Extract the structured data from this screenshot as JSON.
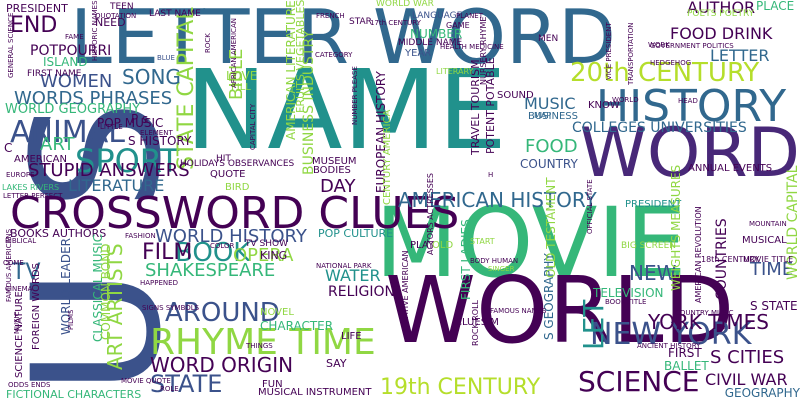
{
  "palette": {
    "background": "#ffffff",
    "dark_purple": "#440154",
    "indigo": "#3b528b",
    "teal_blue": "#31688e",
    "teal": "#21918c",
    "green": "#35b779",
    "lime": "#90d743",
    "yellow": "#b5de2b"
  },
  "words": [
    {
      "text": "NAME",
      "color": "#21918c",
      "orientation": "horizontal"
    },
    {
      "text": "MOVIE",
      "color": "#35b779",
      "orientation": "horizontal"
    },
    {
      "text": "U S",
      "color": "#3b528b",
      "orientation": "vertical"
    },
    {
      "text": "WORLD",
      "color": "#440154",
      "orientation": "horizontal"
    },
    {
      "text": "LETTER WORD",
      "color": "#31688e",
      "orientation": "horizontal"
    },
    {
      "text": "WORD",
      "color": "#482878",
      "orientation": "horizontal"
    },
    {
      "text": "CROSSWORD CLUES",
      "color": "#440154",
      "orientation": "horizontal"
    },
    {
      "text": "HISTORY",
      "color": "#31688e",
      "orientation": "horizontal"
    },
    {
      "text": "20th CENTURY",
      "color": "#b5de2b",
      "orientation": "horizontal"
    },
    {
      "text": "RHYME TIME",
      "color": "#90d743",
      "orientation": "horizontal"
    },
    {
      "text": "SCIENCE",
      "color": "#440154",
      "orientation": "horizontal"
    },
    {
      "text": "NEW YORK",
      "color": "#3b528b",
      "orientation": "horizontal"
    },
    {
      "text": "AMERICAN HISTORY",
      "color": "#31688e",
      "orientation": "horizontal"
    },
    {
      "text": "SPORT",
      "color": "#21918c",
      "orientation": "horizontal"
    },
    {
      "text": "ANIMAL",
      "color": "#3b528b",
      "orientation": "horizontal"
    },
    {
      "text": "STATE CAPITAL",
      "color": "#90d743",
      "orientation": "vertical"
    },
    {
      "text": "BIBLE",
      "color": "#90d743",
      "orientation": "vertical"
    },
    {
      "text": "WORLD HISTORY",
      "color": "#3b528b",
      "orientation": "horizontal"
    },
    {
      "text": "BOOK",
      "color": "#21918c",
      "orientation": "horizontal"
    },
    {
      "text": "SHAKESPEARE",
      "color": "#35b779",
      "orientation": "horizontal"
    },
    {
      "text": "AROUND",
      "color": "#3b528b",
      "orientation": "horizontal"
    },
    {
      "text": "WORD ORIGIN",
      "color": "#440154",
      "orientation": "horizontal"
    },
    {
      "text": "STATE",
      "color": "#3b528b",
      "orientation": "horizontal"
    },
    {
      "text": "19th CENTURY",
      "color": "#b5de2b",
      "orientation": "horizontal"
    },
    {
      "text": "LET",
      "color": "#21918c",
      "orientation": "vertical"
    },
    {
      "text": "YORK TIMES",
      "color": "#440154",
      "orientation": "horizontal"
    },
    {
      "text": "S CITIES",
      "color": "#440154",
      "orientation": "horizontal"
    },
    {
      "text": "CIVIL WAR",
      "color": "#440154",
      "orientation": "horizontal"
    },
    {
      "text": "GEOGRAPHY",
      "color": "#31688e",
      "orientation": "horizontal"
    },
    {
      "text": "FOOD DRINK",
      "color": "#440154",
      "orientation": "horizontal"
    },
    {
      "text": "AUTHOR",
      "color": "#440154",
      "orientation": "horizontal"
    },
    {
      "text": "PLACE",
      "color": "#35b779",
      "orientation": "horizontal"
    },
    {
      "text": "LETTER",
      "color": "#31688e",
      "orientation": "horizontal"
    },
    {
      "text": "COLLEGES UNIVERSITIES",
      "color": "#31688e",
      "orientation": "horizontal"
    },
    {
      "text": "END",
      "color": "#440154",
      "orientation": "horizontal"
    },
    {
      "text": "WOMEN",
      "color": "#3b528b",
      "orientation": "horizontal"
    },
    {
      "text": "WORDS PHRASES",
      "color": "#31688e",
      "orientation": "horizontal"
    },
    {
      "text": "SONG",
      "color": "#31688e",
      "orientation": "horizontal"
    },
    {
      "text": "ART",
      "color": "#35b779",
      "orientation": "horizontal"
    },
    {
      "text": "STUPID ANSWERS",
      "color": "#440154",
      "orientation": "horizontal"
    },
    {
      "text": "LITERATURE",
      "color": "#31688e",
      "orientation": "horizontal"
    },
    {
      "text": "FILM",
      "color": "#440154",
      "orientation": "horizontal"
    },
    {
      "text": "OPERA",
      "color": "#90d743",
      "orientation": "horizontal"
    },
    {
      "text": "TV",
      "color": "#31688e",
      "orientation": "horizontal"
    },
    {
      "text": "ART ARTISTS",
      "color": "#90d743",
      "orientation": "vertical"
    },
    {
      "text": "FOOD",
      "color": "#35b779",
      "orientation": "horizontal"
    },
    {
      "text": "COUNTRY",
      "color": "#3b528b",
      "orientation": "horizontal"
    },
    {
      "text": "MUSIC",
      "color": "#31688e",
      "orientation": "horizontal"
    },
    {
      "text": "DAY",
      "color": "#440154",
      "orientation": "horizontal"
    },
    {
      "text": "WATER",
      "color": "#21918c",
      "orientation": "horizontal"
    },
    {
      "text": "RELIGION",
      "color": "#440154",
      "orientation": "horizontal"
    },
    {
      "text": "NEW",
      "color": "#3b528b",
      "orientation": "horizontal"
    },
    {
      "text": "TIME",
      "color": "#3b528b",
      "orientation": "horizontal"
    },
    {
      "text": "COUNTRIES",
      "color": "#440154",
      "orientation": "vertical"
    },
    {
      "text": "WORLD CAPITAL",
      "color": "#90d743",
      "orientation": "vertical"
    },
    {
      "text": "BUSINESS INDUSTRY",
      "color": "#90d743",
      "orientation": "vertical"
    },
    {
      "text": "AMERICAN LITERATURE",
      "color": "#90d743",
      "orientation": "vertical"
    },
    {
      "text": "POTPOURRI",
      "color": "#440154",
      "orientation": "horizontal"
    },
    {
      "text": "ISLAND",
      "color": "#35b779",
      "orientation": "horizontal"
    },
    {
      "text": "PRESIDENT",
      "color": "#440154",
      "orientation": "horizontal"
    },
    {
      "text": "TEEN",
      "color": "#440154",
      "orientation": "horizontal"
    },
    {
      "text": "NEED",
      "color": "#440154",
      "orientation": "horizontal"
    },
    {
      "text": "LAST NAME",
      "color": "#440154",
      "orientation": "horizontal"
    },
    {
      "text": "WORLD WAR",
      "color": "#90d743",
      "orientation": "horizontal"
    },
    {
      "text": "LANGUAGE",
      "color": "#3b528b",
      "orientation": "horizontal"
    },
    {
      "text": "MIDDLE NAME",
      "color": "#440154",
      "orientation": "horizontal"
    },
    {
      "text": "NUMBER",
      "color": "#35b779",
      "orientation": "horizontal"
    },
    {
      "text": "YEAR",
      "color": "#3b528b",
      "orientation": "horizontal"
    },
    {
      "text": "MEN",
      "color": "#440154",
      "orientation": "horizontal"
    },
    {
      "text": "POETS POETRY",
      "color": "#90d743",
      "orientation": "horizontal"
    },
    {
      "text": "WORLD GEOGRAPHY",
      "color": "#35b779",
      "orientation": "horizontal"
    },
    {
      "text": "POP MUSIC",
      "color": "#440154",
      "orientation": "horizontal"
    },
    {
      "text": "S HISTORY",
      "color": "#440154",
      "orientation": "horizontal"
    },
    {
      "text": "AMERICAN",
      "color": "#440154",
      "orientation": "horizontal"
    },
    {
      "text": "BOOKS AUTHORS",
      "color": "#440154",
      "orientation": "horizontal"
    },
    {
      "text": "POP CULTURE",
      "color": "#21918c",
      "orientation": "horizontal"
    },
    {
      "text": "HOLIDAYS OBSERVANCES",
      "color": "#440154",
      "orientation": "horizontal"
    },
    {
      "text": "KING",
      "color": "#440154",
      "orientation": "horizontal"
    },
    {
      "text": "TV SHOW",
      "color": "#440154",
      "orientation": "horizontal"
    },
    {
      "text": "CHARACTER",
      "color": "#35b779",
      "orientation": "horizontal"
    },
    {
      "text": "NOVEL",
      "color": "#90d743",
      "orientation": "horizontal"
    },
    {
      "text": "FUN",
      "color": "#440154",
      "orientation": "horizontal"
    },
    {
      "text": "MUSICAL INSTRUMENT",
      "color": "#440154",
      "orientation": "horizontal"
    },
    {
      "text": "FICTIONAL CHARACTERS",
      "color": "#35b779",
      "orientation": "horizontal"
    },
    {
      "text": "CLASSICAL MUSIC",
      "color": "#35b779",
      "orientation": "vertical"
    },
    {
      "text": "COMMON BOND",
      "color": "#90d743",
      "orientation": "vertical"
    },
    {
      "text": "WORLD LEADER",
      "color": "#3b528b",
      "orientation": "vertical"
    },
    {
      "text": "FOREIGN WORDS",
      "color": "#440154",
      "orientation": "vertical"
    },
    {
      "text": "SCIENCE NATURE",
      "color": "#440154",
      "orientation": "vertical"
    },
    {
      "text": "FIRST LADIES",
      "color": "#35b779",
      "orientation": "vertical"
    },
    {
      "text": "S GEOGRAPHY",
      "color": "#31688e",
      "orientation": "vertical"
    },
    {
      "text": "OLD TESTAMENT",
      "color": "#90d743",
      "orientation": "vertical"
    },
    {
      "text": "TELEVISION",
      "color": "#35b779",
      "orientation": "horizontal"
    },
    {
      "text": "MUSICAL",
      "color": "#440154",
      "orientation": "horizontal"
    },
    {
      "text": "S STATE",
      "color": "#440154",
      "orientation": "horizontal"
    },
    {
      "text": "FIRST",
      "color": "#440154",
      "orientation": "horizontal"
    },
    {
      "text": "BALLET",
      "color": "#35b779",
      "orientation": "horizontal"
    },
    {
      "text": "SAY",
      "color": "#440154",
      "orientation": "horizontal"
    },
    {
      "text": "LIFE",
      "color": "#440154",
      "orientation": "horizontal"
    },
    {
      "text": "BODIES",
      "color": "#440154",
      "orientation": "horizontal"
    },
    {
      "text": "QUOTE",
      "color": "#440154",
      "orientation": "horizontal"
    },
    {
      "text": "MUSEUM",
      "color": "#440154",
      "orientation": "horizontal"
    },
    {
      "text": "KNOW",
      "color": "#440154",
      "orientation": "horizontal"
    },
    {
      "text": "BUSINESS",
      "color": "#31688e",
      "orientation": "horizontal"
    },
    {
      "text": "SOUND",
      "color": "#440154",
      "orientation": "horizontal"
    },
    {
      "text": "LOVE",
      "color": "#90d743",
      "orientation": "horizontal"
    },
    {
      "text": "ANNUAL EVENTS",
      "color": "#440154",
      "orientation": "horizontal"
    },
    {
      "text": "PRESIDENT",
      "color": "#21918c",
      "orientation": "horizontal"
    },
    {
      "text": "EUROPEAN HISTORY",
      "color": "#440154",
      "orientation": "vertical"
    },
    {
      "text": "TRAVEL TOURISM",
      "color": "#440154",
      "orientation": "vertical"
    },
    {
      "text": "POTENT POTABLE",
      "color": "#440154",
      "orientation": "vertical"
    },
    {
      "text": "FRUITS VEGETABLES",
      "color": "#90d743",
      "orientation": "vertical"
    },
    {
      "text": "WEIGHTS MEASURES",
      "color": "#90d743",
      "orientation": "vertical"
    },
    {
      "text": "FIRST NAME",
      "color": "#440154",
      "orientation": "horizontal"
    },
    {
      "text": "HAPPENED",
      "color": "#440154",
      "orientation": "horizontal"
    },
    {
      "text": "FASHION",
      "color": "#440154",
      "orientation": "horizontal"
    },
    {
      "text": "NATIONAL PARK",
      "color": "#440154",
      "orientation": "horizontal"
    },
    {
      "text": "START",
      "color": "#90d743",
      "orientation": "horizontal"
    },
    {
      "text": "BODY HUMAN",
      "color": "#440154",
      "orientation": "horizontal"
    },
    {
      "text": "SINGER",
      "color": "#90d743",
      "orientation": "horizontal"
    },
    {
      "text": "MOVIE QUOTE",
      "color": "#440154",
      "orientation": "horizontal"
    },
    {
      "text": "ODDS ENDS",
      "color": "#440154",
      "orientation": "horizontal"
    },
    {
      "text": "MOUNTAIN",
      "color": "#440154",
      "orientation": "horizontal"
    },
    {
      "text": "MOVIE TITLE",
      "color": "#440154",
      "orientation": "horizontal"
    },
    {
      "text": "18th CENTURY",
      "color": "#440154",
      "orientation": "horizontal"
    },
    {
      "text": "AMERICAN REVOLUTION",
      "color": "#440154",
      "orientation": "vertical"
    },
    {
      "text": "BIG SCREEN",
      "color": "#90d743",
      "orientation": "horizontal"
    },
    {
      "text": "CLUES M",
      "color": "#440154",
      "orientation": "horizontal"
    },
    {
      "text": "PLAY",
      "color": "#440154",
      "orientation": "horizontal"
    },
    {
      "text": "OLD",
      "color": "#90d743",
      "orientation": "horizontal"
    },
    {
      "text": "ROCK ROLL",
      "color": "#440154",
      "orientation": "vertical"
    },
    {
      "text": "NATIVE AMERICAN",
      "color": "#440154",
      "orientation": "vertical"
    },
    {
      "text": "ACTORS ACTRESSES",
      "color": "#440154",
      "orientation": "vertical"
    },
    {
      "text": "HIT",
      "color": "#440154",
      "orientation": "horizontal"
    },
    {
      "text": "FILL",
      "color": "#90d743",
      "orientation": "horizontal"
    },
    {
      "text": "BIRD",
      "color": "#90d743",
      "orientation": "horizontal"
    },
    {
      "text": "MAP",
      "color": "#31688e",
      "orientation": "horizontal"
    },
    {
      "text": "CENTURY AMERICA",
      "color": "#90d743",
      "orientation": "vertical"
    },
    {
      "text": "C",
      "color": "#440154",
      "orientation": "horizontal"
    },
    {
      "text": "LAKES RIVERS",
      "color": "#35b779",
      "orientation": "horizontal"
    },
    {
      "text": "COME",
      "color": "#440154",
      "orientation": "horizontal"
    },
    {
      "text": "ELEMENT",
      "color": "#440154",
      "orientation": "horizontal"
    },
    {
      "text": "LITTLE",
      "color": "#440154",
      "orientation": "horizontal"
    },
    {
      "text": "QUOTATION",
      "color": "#440154",
      "orientation": "horizontal"
    },
    {
      "text": "FAME",
      "color": "#440154",
      "orientation": "horizontal"
    },
    {
      "text": "BLUE",
      "color": "#3b528b",
      "orientation": "horizontal"
    },
    {
      "text": "FRENCH",
      "color": "#440154",
      "orientation": "horizontal"
    },
    {
      "text": "CATEGORY",
      "color": "#440154",
      "orientation": "horizontal"
    },
    {
      "text": "STAR",
      "color": "#440154",
      "orientation": "horizontal"
    },
    {
      "text": "GAME",
      "color": "#440154",
      "orientation": "horizontal"
    },
    {
      "text": "PLANET",
      "color": "#440154",
      "orientation": "horizontal"
    },
    {
      "text": "WORK",
      "color": "#440154",
      "orientation": "horizontal"
    },
    {
      "text": "HEDGEHOG",
      "color": "#440154",
      "orientation": "horizontal"
    },
    {
      "text": "GOVERNMENT POLITICS",
      "color": "#440154",
      "orientation": "horizontal"
    },
    {
      "text": "ROCK",
      "color": "#440154",
      "orientation": "vertical"
    },
    {
      "text": "VICE PRESIDENT",
      "color": "#440154",
      "orientation": "vertical"
    },
    {
      "text": "TRANSPORTATION",
      "color": "#440154",
      "orientation": "vertical"
    },
    {
      "text": "GENERAL SCIENCE",
      "color": "#440154",
      "orientation": "vertical"
    },
    {
      "text": "AFRICAN AMERICAN",
      "color": "#440154",
      "orientation": "vertical"
    },
    {
      "text": "CAPITAL CITY",
      "color": "#440154",
      "orientation": "vertical"
    },
    {
      "text": "NURSERY RHYME",
      "color": "#440154",
      "orientation": "vertical"
    },
    {
      "text": "LITERARY",
      "color": "#90d743",
      "orientation": "horizontal"
    },
    {
      "text": "NUMBER PLEASE",
      "color": "#440154",
      "orientation": "vertical"
    },
    {
      "text": "HEAD",
      "color": "#440154",
      "orientation": "horizontal"
    },
    {
      "text": "EUROPE",
      "color": "#440154",
      "orientation": "horizontal"
    },
    {
      "text": "LETTER PERFECT",
      "color": "#440154",
      "orientation": "horizontal"
    },
    {
      "text": "BIBLICAL",
      "color": "#440154",
      "orientation": "horizontal"
    },
    {
      "text": "CINEMA",
      "color": "#440154",
      "orientation": "horizontal"
    },
    {
      "text": "COLOR",
      "color": "#440154",
      "orientation": "horizontal"
    },
    {
      "text": "FAMOUS NAMES",
      "color": "#440154",
      "orientation": "horizontal"
    },
    {
      "text": "BOOK TITLE",
      "color": "#440154",
      "orientation": "horizontal"
    },
    {
      "text": "COUNTRY MUSIC",
      "color": "#440154",
      "orientation": "horizontal"
    },
    {
      "text": "ANCIENT HISTORY",
      "color": "#440154",
      "orientation": "horizontal"
    },
    {
      "text": "THINGS",
      "color": "#440154",
      "orientation": "horizontal"
    },
    {
      "text": "ROLE",
      "color": "#440154",
      "orientation": "horizontal"
    },
    {
      "text": "H",
      "color": "#440154",
      "orientation": "horizontal"
    },
    {
      "text": "OFFICIAL STATE",
      "color": "#440154",
      "orientation": "vertical"
    },
    {
      "text": "FAMOUS AMERICANS",
      "color": "#440154",
      "orientation": "vertical"
    },
    {
      "text": "MUSIC",
      "color": "#440154",
      "orientation": "vertical"
    },
    {
      "text": "FILMS",
      "color": "#440154",
      "orientation": "vertical"
    },
    {
      "text": "HISTORIC NAMES",
      "color": "#440154",
      "orientation": "vertical"
    },
    {
      "text": "SIGNS SYMBOLS",
      "color": "#440154",
      "orientation": "horizontal"
    },
    {
      "text": "HEALTH MEDICINE",
      "color": "#440154",
      "orientation": "horizontal"
    },
    {
      "text": "WORLD",
      "color": "#440154",
      "orientation": "horizontal"
    },
    {
      "text": "17th CENTURY",
      "color": "#440154",
      "orientation": "horizontal"
    },
    {
      "text": "P s",
      "color": "#440154",
      "orientation": "horizontal"
    },
    {
      "text": "DICTIONARY",
      "color": "#90d743",
      "orientation": "horizontal"
    }
  ]
}
